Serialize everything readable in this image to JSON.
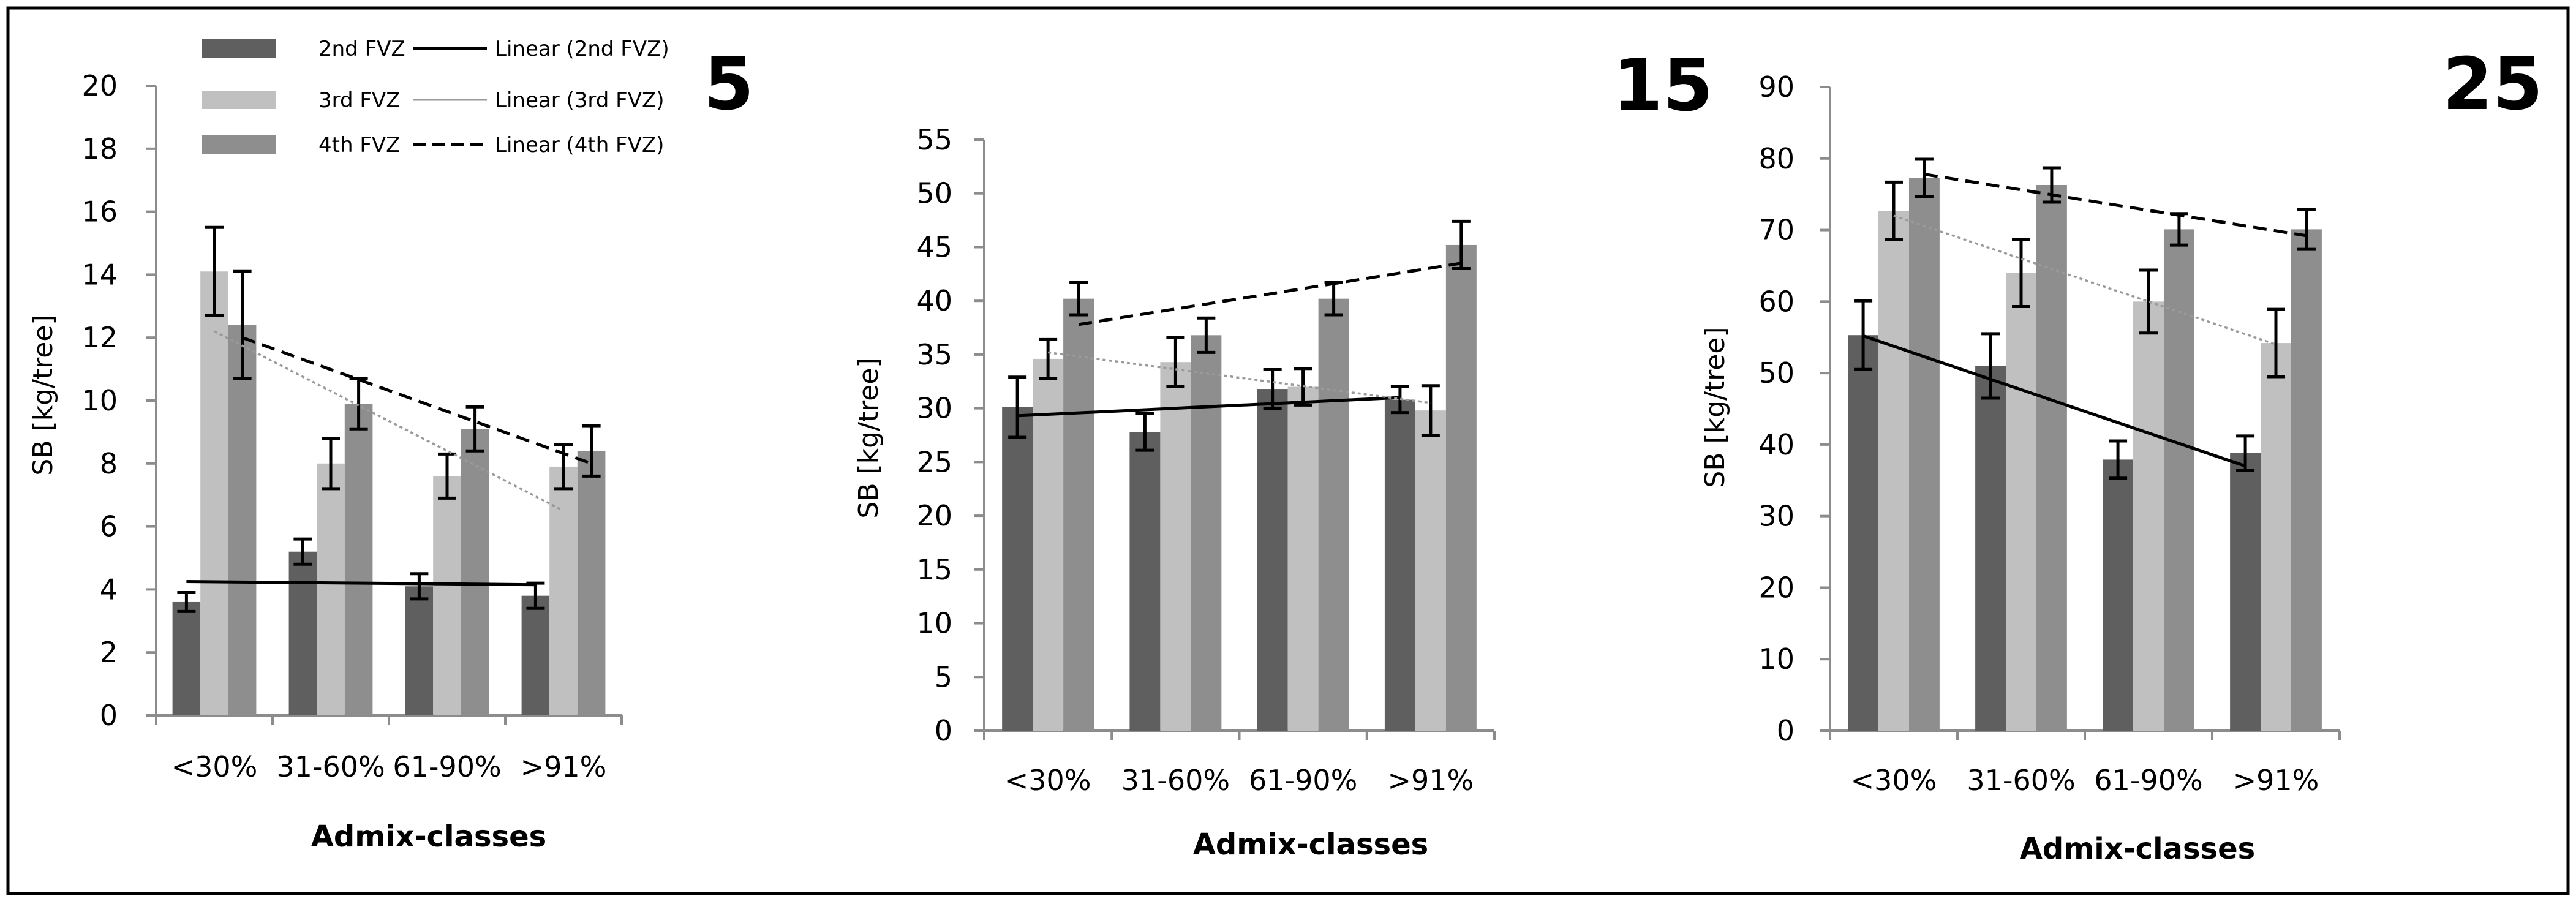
{
  "colors": {
    "fvz2": "#5f5f5f",
    "fvz3": "#c0c0c0",
    "fvz4": "#8e8e8e",
    "axis": "#8c8c8c",
    "text": "#000000"
  },
  "legend": {
    "bar_2nd": "2nd FVZ",
    "bar_3rd": "3rd FVZ",
    "bar_4th": "4th FVZ",
    "line_2nd": "Linear (2nd FVZ)",
    "line_3rd": "Linear (3rd FVZ)",
    "line_4th": "Linear (4th FVZ)"
  },
  "chart_data": [
    {
      "type": "bar",
      "title": "5",
      "xlabel": "Admix-classes",
      "ylabel": "SB  [kg/tree]",
      "categories": [
        "<30%",
        "31-60%",
        "61-90%",
        ">91%"
      ],
      "ylim": [
        0,
        20
      ],
      "ytick_step": 2,
      "series": [
        {
          "name": "2nd FVZ",
          "values": [
            3.6,
            5.2,
            4.1,
            3.8
          ],
          "errors": [
            0.3,
            0.4,
            0.4,
            0.4
          ]
        },
        {
          "name": "3rd FVZ",
          "values": [
            14.1,
            8.0,
            7.6,
            7.9
          ],
          "errors": [
            1.4,
            0.8,
            0.7,
            0.7
          ]
        },
        {
          "name": "4th FVZ",
          "values": [
            12.4,
            9.9,
            9.1,
            8.4
          ],
          "errors": [
            1.7,
            0.8,
            0.7,
            0.8
          ]
        }
      ],
      "trendlines": [
        {
          "name": "Linear (2nd FVZ)",
          "start": 4.25,
          "end": 4.15,
          "style": "solid"
        },
        {
          "name": "Linear (3rd FVZ)",
          "start": 12.2,
          "end": 6.5,
          "style": "dotted"
        },
        {
          "name": "Linear (4th FVZ)",
          "start": 12.0,
          "end": 8.0,
          "style": "dashed"
        }
      ]
    },
    {
      "type": "bar",
      "title": "15",
      "xlabel": "Admix-classes",
      "ylabel": "SB  [kg/tree]",
      "categories": [
        "<30%",
        "31-60%",
        "61-90%",
        ">91%"
      ],
      "ylim": [
        0,
        55
      ],
      "ytick_step": 5,
      "series": [
        {
          "name": "2nd FVZ",
          "values": [
            30.1,
            27.8,
            31.8,
            30.8
          ],
          "errors": [
            2.8,
            1.7,
            1.8,
            1.2
          ]
        },
        {
          "name": "3rd FVZ",
          "values": [
            34.6,
            34.3,
            32.0,
            29.8
          ],
          "errors": [
            1.8,
            2.3,
            1.7,
            2.3
          ]
        },
        {
          "name": "4th FVZ",
          "values": [
            40.2,
            36.8,
            40.2,
            45.2
          ],
          "errors": [
            1.5,
            1.6,
            1.5,
            2.2
          ]
        }
      ],
      "trendlines": [
        {
          "name": "Linear (2nd FVZ)",
          "start": 29.3,
          "end": 31.0,
          "style": "solid"
        },
        {
          "name": "Linear (3rd FVZ)",
          "start": 35.2,
          "end": 30.5,
          "style": "dotted"
        },
        {
          "name": "Linear (4th FVZ)",
          "start": 37.8,
          "end": 43.5,
          "style": "dashed"
        }
      ]
    },
    {
      "type": "bar",
      "title": "25",
      "xlabel": "Admix-classes",
      "ylabel": "SB  [kg/tree]",
      "categories": [
        "<30%",
        "31-60%",
        "61-90%",
        ">91%"
      ],
      "ylim": [
        0,
        90
      ],
      "ytick_step": 10,
      "series": [
        {
          "name": "2nd FVZ",
          "values": [
            55.3,
            51.0,
            37.9,
            38.8
          ],
          "errors": [
            4.8,
            4.5,
            2.6,
            2.4
          ]
        },
        {
          "name": "3rd FVZ",
          "values": [
            72.7,
            64.0,
            60.0,
            54.2
          ],
          "errors": [
            4.0,
            4.7,
            4.4,
            4.7
          ]
        },
        {
          "name": "4th FVZ",
          "values": [
            77.3,
            76.3,
            70.1,
            70.1
          ],
          "errors": [
            2.6,
            2.4,
            2.2,
            2.8
          ]
        }
      ],
      "trendlines": [
        {
          "name": "Linear (2nd FVZ)",
          "start": 55.2,
          "end": 37.0,
          "style": "solid"
        },
        {
          "name": "Linear (3rd FVZ)",
          "start": 72.0,
          "end": 54.0,
          "style": "dotted"
        },
        {
          "name": "Linear (4th FVZ)",
          "start": 77.8,
          "end": 69.2,
          "style": "dashed"
        }
      ]
    }
  ]
}
